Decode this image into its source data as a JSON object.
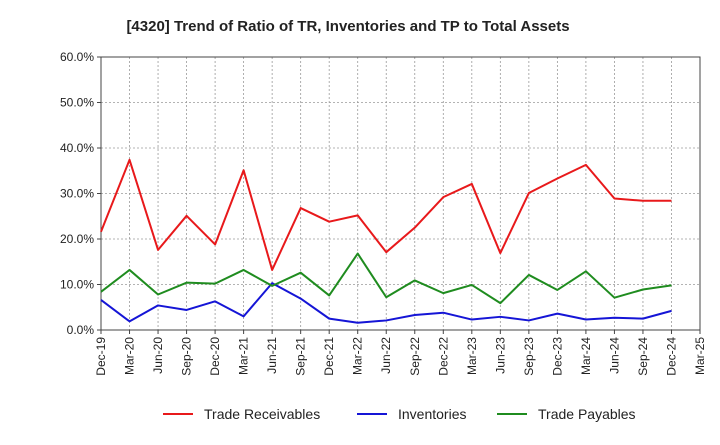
{
  "chart_data": {
    "type": "line",
    "title": "[4320]  Trend of Ratio of TR, Inventories and TP to Total Assets",
    "xlabel": "",
    "ylabel": "",
    "ylim": [
      0,
      60
    ],
    "y_ticks": [
      "0.0%",
      "10.0%",
      "20.0%",
      "30.0%",
      "40.0%",
      "50.0%",
      "60.0%"
    ],
    "categories": [
      "Dec-19",
      "Mar-20",
      "Jun-20",
      "Sep-20",
      "Dec-20",
      "Mar-21",
      "Jun-21",
      "Sep-21",
      "Dec-21",
      "Mar-22",
      "Jun-22",
      "Sep-22",
      "Dec-22",
      "Mar-23",
      "Jun-23",
      "Sep-23",
      "Dec-23",
      "Mar-24",
      "Jun-24",
      "Sep-24",
      "Dec-24",
      "Mar-25"
    ],
    "grid": true,
    "legend_position": "bottom",
    "series": [
      {
        "name": "Trade Receivables",
        "color": "#e8191b",
        "values": [
          21.6,
          37.4,
          17.6,
          25.1,
          18.8,
          35.1,
          13.2,
          26.8,
          23.8,
          25.2,
          17.1,
          22.5,
          29.2,
          32.1,
          16.9,
          30.1,
          33.3,
          36.3,
          28.9,
          28.4,
          28.4,
          null
        ]
      },
      {
        "name": "Inventories",
        "color": "#1515d6",
        "values": [
          6.6,
          1.9,
          5.4,
          4.4,
          6.3,
          3.0,
          10.3,
          6.9,
          2.5,
          1.6,
          2.1,
          3.3,
          3.8,
          2.3,
          2.9,
          2.1,
          3.6,
          2.3,
          2.7,
          2.5,
          4.2,
          null
        ]
      },
      {
        "name": "Trade Payables",
        "color": "#1f8c1f",
        "values": [
          8.4,
          13.2,
          7.8,
          10.4,
          10.2,
          13.2,
          9.7,
          12.6,
          7.6,
          16.8,
          7.2,
          10.9,
          8.1,
          9.9,
          5.9,
          12.1,
          8.8,
          12.9,
          7.1,
          8.9,
          9.8,
          null
        ]
      }
    ]
  }
}
